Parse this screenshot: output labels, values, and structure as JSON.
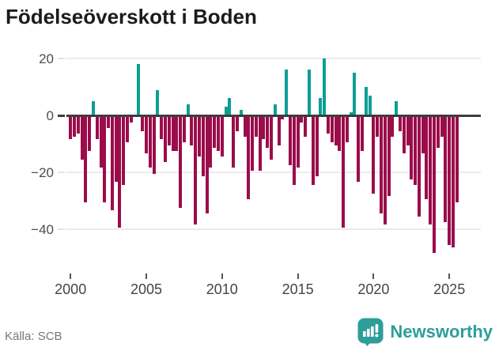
{
  "title": "Födelseöverskott i Boden",
  "source": "Källa: SCB",
  "branding": {
    "name": "Newsworthy",
    "icon": "newsworthy-speech-bubble-bar-chart-icon"
  },
  "colors": {
    "positive": "#0d9e96",
    "negative": "#9b0c4b",
    "axis": "#3d3d3d",
    "grid": "#ebebeb",
    "tick_label": "#4d4d4d",
    "source_text": "#75757f",
    "brand_teal": "#2d9e9a",
    "title_text": "#1b1b1b"
  },
  "chart_data": {
    "type": "bar",
    "title": "Födelseöverskott i Boden",
    "frequency": "quarterly",
    "start_period": "2000Q1",
    "end_period": "2025Q3",
    "values": [
      -8,
      -7,
      -6,
      -15,
      -30,
      -12,
      5,
      -8,
      -18,
      -30,
      -4,
      -33,
      -23,
      -39,
      -24,
      -9,
      -2,
      0,
      18,
      -5,
      -13,
      -18,
      -20,
      9,
      -8,
      -16,
      -10,
      -12,
      -12,
      -32,
      -9,
      4,
      -10,
      -38,
      -14,
      -21,
      -34,
      -18,
      -11,
      -12,
      -14,
      3,
      6,
      -18,
      -5,
      2,
      -7,
      -29,
      -19,
      -7,
      -19,
      -8,
      -11,
      -15,
      4,
      -10,
      -1,
      16,
      -17,
      -24,
      -18,
      -2,
      -7,
      16,
      -24,
      -21,
      6,
      20,
      -6,
      -9,
      -10,
      -12,
      -39,
      -9,
      1,
      15,
      -23,
      -12,
      10,
      7,
      -27,
      -7,
      -34,
      -38,
      -28,
      -7,
      5,
      -5,
      -13,
      -10,
      -22,
      -24,
      -35,
      -13,
      -29,
      -38,
      -48,
      -11,
      -7,
      -37,
      -45,
      -46,
      -30
    ],
    "x_ticks": [
      "2000",
      "2005",
      "2010",
      "2015",
      "2020",
      "2025"
    ],
    "y_ticks": [
      20,
      0,
      -20,
      -40
    ],
    "y_tick_labels": [
      "20",
      "0",
      "−20",
      "−40"
    ],
    "ylim": [
      -50,
      22
    ],
    "grid": true,
    "legend": "none",
    "positive_color": "#0d9e96",
    "negative_color": "#9b0c4b"
  }
}
